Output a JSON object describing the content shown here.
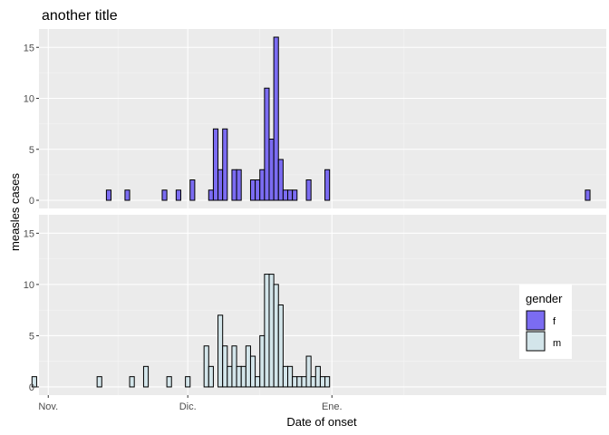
{
  "chart_data": {
    "type": "bar",
    "title": "another title",
    "xlabel": "Date of onset",
    "ylabel": "measles cases",
    "x_tick_labels": [
      "Nov.",
      "Dic.",
      "Ene."
    ],
    "x_ticks": [
      "Nov. 1",
      "Dic. 1",
      "Ene. 1"
    ],
    "x_range_days_from_nov1": [
      -2,
      120
    ],
    "ylim": [
      -0.8,
      16.8
    ],
    "y_ticks": [
      0,
      5,
      10,
      15
    ],
    "grid": true,
    "facets": [
      "f",
      "m"
    ],
    "legend": {
      "title": "gender",
      "position": "right",
      "entries": [
        {
          "label": "f",
          "color": "#7b6cf2"
        },
        {
          "label": "m",
          "color": "#d3e5ea"
        }
      ]
    },
    "series": [
      {
        "name": "f",
        "color": "#7b6cf2",
        "points": [
          [
            "Nov. 14",
            1
          ],
          [
            "Nov. 18",
            1
          ],
          [
            "Nov. 26",
            1
          ],
          [
            "Nov. 29",
            1
          ],
          [
            "Dic. 2",
            2
          ],
          [
            "Dic. 6",
            1
          ],
          [
            "Dic. 7",
            7
          ],
          [
            "Dic. 8",
            3
          ],
          [
            "Dic. 9",
            7
          ],
          [
            "Dic. 11",
            3
          ],
          [
            "Dic. 12",
            3
          ],
          [
            "Dic. 15",
            2
          ],
          [
            "Dic. 16",
            2
          ],
          [
            "Dic. 17",
            3
          ],
          [
            "Dic. 18",
            11
          ],
          [
            "Dic. 19",
            6
          ],
          [
            "Dic. 20",
            16
          ],
          [
            "Dic. 21",
            4
          ],
          [
            "Dic. 22",
            1
          ],
          [
            "Dic. 23",
            1
          ],
          [
            "Dic. 24",
            1
          ],
          [
            "Dic. 27",
            2
          ],
          [
            "Dic. 31",
            3
          ],
          [
            "Feb. 25",
            1
          ]
        ]
      },
      {
        "name": "m",
        "color": "#d3e5ea",
        "points": [
          [
            "Oct. 29",
            1
          ],
          [
            "Nov. 12",
            1
          ],
          [
            "Nov. 19",
            1
          ],
          [
            "Nov. 22",
            2
          ],
          [
            "Nov. 27",
            1
          ],
          [
            "Dic. 1",
            1
          ],
          [
            "Dic. 5",
            4
          ],
          [
            "Dic. 6",
            2
          ],
          [
            "Dic. 8",
            7
          ],
          [
            "Dic. 9",
            4
          ],
          [
            "Dic. 10",
            2
          ],
          [
            "Dic. 11",
            4
          ],
          [
            "Dic. 12",
            2
          ],
          [
            "Dic. 13",
            2
          ],
          [
            "Dic. 14",
            4
          ],
          [
            "Dic. 15",
            3
          ],
          [
            "Dic. 16",
            1
          ],
          [
            "Dic. 17",
            5
          ],
          [
            "Dic. 18",
            11
          ],
          [
            "Dic. 19",
            11
          ],
          [
            "Dic. 20",
            10
          ],
          [
            "Dic. 21",
            8
          ],
          [
            "Dic. 22",
            2
          ],
          [
            "Dic. 23",
            2
          ],
          [
            "Dic. 24",
            1
          ],
          [
            "Dic. 25",
            1
          ],
          [
            "Dic. 26",
            1
          ],
          [
            "Dic. 27",
            3
          ],
          [
            "Dic. 28",
            1
          ],
          [
            "Dic. 29",
            2
          ],
          [
            "Dic. 30",
            1
          ],
          [
            "Dic. 31",
            1
          ]
        ]
      }
    ]
  }
}
